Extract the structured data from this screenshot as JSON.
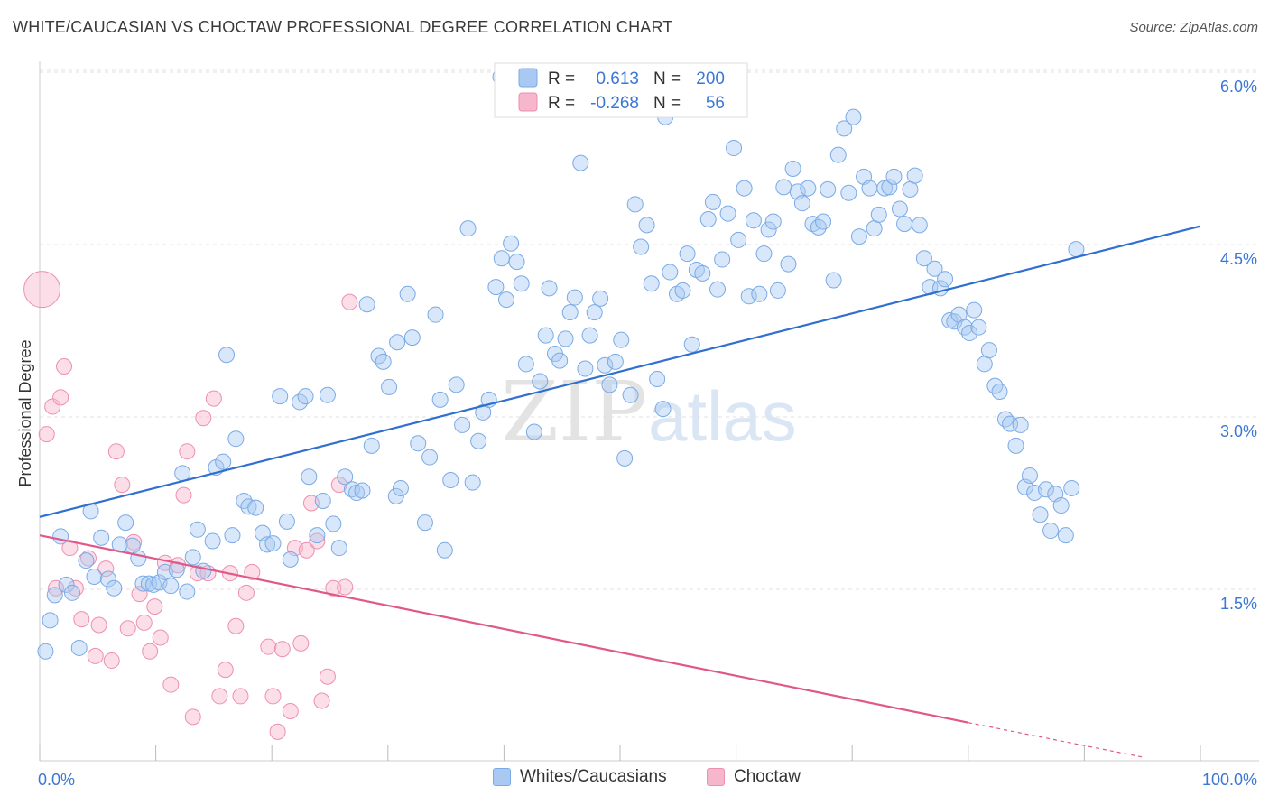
{
  "header": {
    "title": "WHITE/CAUCASIAN VS CHOCTAW PROFESSIONAL DEGREE CORRELATION CHART",
    "source": "Source: ZipAtlas.com"
  },
  "watermark": {
    "zip": "ZIP",
    "atlas": "atlas"
  },
  "colors": {
    "blue_fill": "#a9c9f2",
    "blue_stroke": "#7aaae6",
    "blue_line": "#2f6fd0",
    "pink_fill": "#f6b6cb",
    "pink_stroke": "#ee8fb0",
    "pink_line": "#e0588a",
    "tick_label": "#3b77d4",
    "grid": "#e2e2e2"
  },
  "legend_top": {
    "rows": [
      {
        "r_label": "R =",
        "r_value": "0.613",
        "n_label": "N =",
        "n_value": "200"
      },
      {
        "r_label": "R =",
        "r_value": "-0.268",
        "n_label": "N =",
        "n_value": "56"
      }
    ]
  },
  "legend_bottom": {
    "items": [
      {
        "label": "Whites/Caucasians"
      },
      {
        "label": "Choctaw"
      }
    ]
  },
  "chart_data": {
    "type": "scatter",
    "title": "WHITE/CAUCASIAN VS CHOCTAW PROFESSIONAL DEGREE CORRELATION CHART",
    "xlabel": "",
    "ylabel": "Professional Degree",
    "xlim": [
      0,
      100
    ],
    "ylim": [
      0,
      6.15
    ],
    "x_tick_labels": [
      {
        "value": 0,
        "label": "0.0%"
      },
      {
        "value": 100,
        "label": "100.0%"
      }
    ],
    "y_ticks": [
      {
        "value": 1.5,
        "label": "1.5%"
      },
      {
        "value": 3.0,
        "label": "3.0%"
      },
      {
        "value": 4.5,
        "label": "4.5%"
      },
      {
        "value": 6.0,
        "label": "6.0%"
      }
    ],
    "x_minor_ticks": [
      0,
      10,
      20,
      30,
      40,
      50,
      60,
      70,
      80,
      90,
      100
    ],
    "grid": "horizontal-dashed",
    "legend": "top-center",
    "series": [
      {
        "name": "Whites/Caucasians",
        "color": "#a9c9f2",
        "trend": {
          "x": [
            0,
            100
          ],
          "y": [
            2.13,
            4.66
          ]
        },
        "points": [
          [
            0.5,
            0.96
          ],
          [
            0.9,
            1.23
          ],
          [
            1.3,
            1.45
          ],
          [
            1.8,
            1.96
          ],
          [
            2.3,
            1.54
          ],
          [
            2.8,
            1.47
          ],
          [
            3.4,
            0.99
          ],
          [
            4.0,
            1.75
          ],
          [
            4.4,
            2.18
          ],
          [
            4.7,
            1.61
          ],
          [
            5.3,
            1.95
          ],
          [
            5.9,
            1.59
          ],
          [
            6.4,
            1.51
          ],
          [
            6.9,
            1.89
          ],
          [
            7.4,
            2.08
          ],
          [
            8.0,
            1.88
          ],
          [
            8.5,
            1.77
          ],
          [
            8.9,
            1.55
          ],
          [
            9.4,
            1.55
          ],
          [
            9.8,
            1.54
          ],
          [
            10.3,
            1.56
          ],
          [
            10.8,
            1.65
          ],
          [
            11.3,
            1.53
          ],
          [
            11.8,
            1.67
          ],
          [
            12.3,
            2.51
          ],
          [
            12.7,
            1.48
          ],
          [
            13.2,
            1.78
          ],
          [
            13.6,
            2.02
          ],
          [
            14.1,
            1.66
          ],
          [
            14.9,
            1.92
          ],
          [
            15.2,
            2.56
          ],
          [
            15.8,
            2.61
          ],
          [
            16.1,
            3.54
          ],
          [
            16.6,
            1.97
          ],
          [
            16.9,
            2.81
          ],
          [
            17.6,
            2.27
          ],
          [
            18.0,
            2.22
          ],
          [
            18.6,
            2.21
          ],
          [
            19.2,
            1.99
          ],
          [
            19.6,
            1.89
          ],
          [
            20.1,
            1.9
          ],
          [
            20.7,
            3.18
          ],
          [
            21.3,
            2.09
          ],
          [
            21.6,
            1.76
          ],
          [
            22.4,
            3.13
          ],
          [
            22.9,
            3.18
          ],
          [
            23.2,
            2.48
          ],
          [
            23.9,
            1.97
          ],
          [
            24.4,
            2.27
          ],
          [
            24.8,
            3.19
          ],
          [
            25.3,
            2.07
          ],
          [
            25.8,
            1.86
          ],
          [
            26.3,
            2.48
          ],
          [
            26.9,
            2.37
          ],
          [
            27.3,
            2.34
          ],
          [
            27.8,
            2.36
          ],
          [
            28.2,
            3.98
          ],
          [
            28.6,
            2.75
          ],
          [
            29.2,
            3.53
          ],
          [
            29.6,
            3.48
          ],
          [
            30.1,
            3.26
          ],
          [
            30.7,
            2.31
          ],
          [
            31.1,
            2.38
          ],
          [
            31.7,
            4.07
          ],
          [
            32.1,
            3.69
          ],
          [
            32.6,
            2.77
          ],
          [
            33.2,
            2.08
          ],
          [
            33.6,
            2.65
          ],
          [
            34.1,
            3.89
          ],
          [
            34.5,
            3.15
          ],
          [
            34.9,
            1.84
          ],
          [
            35.4,
            2.45
          ],
          [
            35.9,
            3.28
          ],
          [
            36.4,
            2.93
          ],
          [
            36.9,
            4.64
          ],
          [
            37.3,
            2.43
          ],
          [
            37.8,
            2.79
          ],
          [
            38.2,
            3.04
          ],
          [
            38.7,
            3.15
          ],
          [
            39.3,
            4.13
          ],
          [
            39.8,
            4.38
          ],
          [
            40.2,
            4.02
          ],
          [
            40.6,
            4.51
          ],
          [
            41.1,
            4.35
          ],
          [
            41.5,
            4.16
          ],
          [
            41.9,
            3.46
          ],
          [
            42.6,
            2.87
          ],
          [
            43.1,
            3.31
          ],
          [
            43.6,
            3.71
          ],
          [
            43.9,
            4.12
          ],
          [
            44.4,
            3.55
          ],
          [
            44.8,
            3.49
          ],
          [
            45.3,
            3.68
          ],
          [
            45.7,
            3.91
          ],
          [
            46.1,
            4.04
          ],
          [
            46.6,
            5.21
          ],
          [
            47.0,
            3.42
          ],
          [
            47.4,
            3.71
          ],
          [
            47.8,
            3.91
          ],
          [
            48.3,
            4.03
          ],
          [
            48.7,
            3.45
          ],
          [
            49.1,
            3.28
          ],
          [
            49.6,
            3.48
          ],
          [
            50.1,
            3.67
          ],
          [
            50.4,
            2.64
          ],
          [
            50.9,
            3.19
          ],
          [
            51.3,
            4.85
          ],
          [
            51.8,
            4.48
          ],
          [
            52.3,
            4.67
          ],
          [
            52.7,
            4.16
          ],
          [
            53.2,
            3.33
          ],
          [
            53.7,
            3.07
          ],
          [
            53.9,
            5.61
          ],
          [
            54.3,
            4.26
          ],
          [
            54.9,
            4.07
          ],
          [
            55.4,
            4.1
          ],
          [
            55.8,
            4.42
          ],
          [
            56.2,
            3.63
          ],
          [
            56.6,
            4.28
          ],
          [
            57.1,
            4.25
          ],
          [
            57.6,
            4.72
          ],
          [
            58.0,
            4.87
          ],
          [
            58.4,
            4.11
          ],
          [
            58.8,
            4.37
          ],
          [
            59.3,
            4.77
          ],
          [
            59.8,
            5.34
          ],
          [
            60.2,
            4.54
          ],
          [
            60.7,
            4.99
          ],
          [
            61.1,
            4.05
          ],
          [
            61.5,
            4.71
          ],
          [
            62.0,
            4.07
          ],
          [
            62.4,
            4.42
          ],
          [
            62.8,
            4.63
          ],
          [
            63.2,
            4.7
          ],
          [
            63.6,
            4.1
          ],
          [
            64.1,
            5.0
          ],
          [
            64.5,
            4.33
          ],
          [
            64.9,
            5.16
          ],
          [
            65.3,
            4.96
          ],
          [
            65.7,
            4.86
          ],
          [
            66.2,
            4.99
          ],
          [
            66.6,
            4.68
          ],
          [
            67.1,
            4.65
          ],
          [
            67.5,
            4.7
          ],
          [
            67.9,
            4.98
          ],
          [
            68.4,
            4.19
          ],
          [
            68.8,
            5.28
          ],
          [
            69.3,
            5.51
          ],
          [
            69.7,
            4.95
          ],
          [
            70.1,
            5.61
          ],
          [
            70.6,
            4.57
          ],
          [
            71.0,
            5.09
          ],
          [
            71.5,
            4.99
          ],
          [
            71.9,
            4.64
          ],
          [
            72.3,
            4.76
          ],
          [
            72.8,
            4.99
          ],
          [
            73.2,
            5.0
          ],
          [
            73.6,
            5.09
          ],
          [
            74.1,
            4.81
          ],
          [
            74.5,
            4.68
          ],
          [
            75.0,
            4.98
          ],
          [
            75.4,
            5.1
          ],
          [
            75.8,
            4.67
          ],
          [
            76.2,
            4.38
          ],
          [
            76.7,
            4.13
          ],
          [
            77.1,
            4.29
          ],
          [
            77.6,
            4.12
          ],
          [
            78.0,
            4.2
          ],
          [
            78.4,
            3.84
          ],
          [
            78.8,
            3.83
          ],
          [
            79.2,
            3.89
          ],
          [
            79.7,
            3.78
          ],
          [
            80.1,
            3.73
          ],
          [
            80.5,
            3.93
          ],
          [
            80.9,
            3.78
          ],
          [
            81.4,
            3.46
          ],
          [
            81.8,
            3.58
          ],
          [
            82.3,
            3.27
          ],
          [
            82.7,
            3.22
          ],
          [
            83.2,
            2.98
          ],
          [
            83.6,
            2.94
          ],
          [
            84.1,
            2.75
          ],
          [
            84.5,
            2.93
          ],
          [
            84.9,
            2.39
          ],
          [
            85.3,
            2.49
          ],
          [
            85.7,
            2.34
          ],
          [
            86.2,
            2.15
          ],
          [
            86.7,
            2.37
          ],
          [
            87.1,
            2.01
          ],
          [
            87.5,
            2.33
          ],
          [
            88.0,
            2.23
          ],
          [
            88.4,
            1.97
          ],
          [
            88.9,
            2.38
          ],
          [
            89.3,
            4.46
          ],
          [
            39.7,
            5.96
          ],
          [
            30.8,
            3.65
          ]
        ]
      },
      {
        "name": "Choctaw",
        "color": "#f6b6cb",
        "trend": {
          "x": [
            0,
            80
          ],
          "y": [
            1.97,
            0.34
          ]
        },
        "trend_dashed": {
          "x": [
            80,
            95
          ],
          "y": [
            0.34,
            0.04
          ]
        },
        "points": [
          [
            0.2,
            4.11
          ],
          [
            0.6,
            2.85
          ],
          [
            1.1,
            3.09
          ],
          [
            1.4,
            1.51
          ],
          [
            1.8,
            3.17
          ],
          [
            2.1,
            3.44
          ],
          [
            2.6,
            1.86
          ],
          [
            3.1,
            1.51
          ],
          [
            3.6,
            1.24
          ],
          [
            4.2,
            1.77
          ],
          [
            4.8,
            0.92
          ],
          [
            5.1,
            1.19
          ],
          [
            5.7,
            1.68
          ],
          [
            6.2,
            0.88
          ],
          [
            6.6,
            2.7
          ],
          [
            7.1,
            2.41
          ],
          [
            7.6,
            1.16
          ],
          [
            8.1,
            1.91
          ],
          [
            8.6,
            1.46
          ],
          [
            9.0,
            1.21
          ],
          [
            9.5,
            0.96
          ],
          [
            9.9,
            1.35
          ],
          [
            10.4,
            1.08
          ],
          [
            10.8,
            1.73
          ],
          [
            11.3,
            0.67
          ],
          [
            11.9,
            1.71
          ],
          [
            12.4,
            2.32
          ],
          [
            12.7,
            2.7
          ],
          [
            13.2,
            0.39
          ],
          [
            13.6,
            1.64
          ],
          [
            14.1,
            2.99
          ],
          [
            14.5,
            1.64
          ],
          [
            15.0,
            3.16
          ],
          [
            15.5,
            0.57
          ],
          [
            16.0,
            0.8
          ],
          [
            16.4,
            1.64
          ],
          [
            16.9,
            1.18
          ],
          [
            17.3,
            0.57
          ],
          [
            17.8,
            1.47
          ],
          [
            18.3,
            1.65
          ],
          [
            19.7,
            1.0
          ],
          [
            20.1,
            0.57
          ],
          [
            20.5,
            0.26
          ],
          [
            20.9,
            0.98
          ],
          [
            21.6,
            0.44
          ],
          [
            22.0,
            1.86
          ],
          [
            22.5,
            1.03
          ],
          [
            23.0,
            1.84
          ],
          [
            23.4,
            2.25
          ],
          [
            23.9,
            1.92
          ],
          [
            24.3,
            0.53
          ],
          [
            24.8,
            0.74
          ],
          [
            25.3,
            1.51
          ],
          [
            25.8,
            2.41
          ],
          [
            26.3,
            1.52
          ],
          [
            26.7,
            4.0
          ]
        ]
      }
    ]
  }
}
